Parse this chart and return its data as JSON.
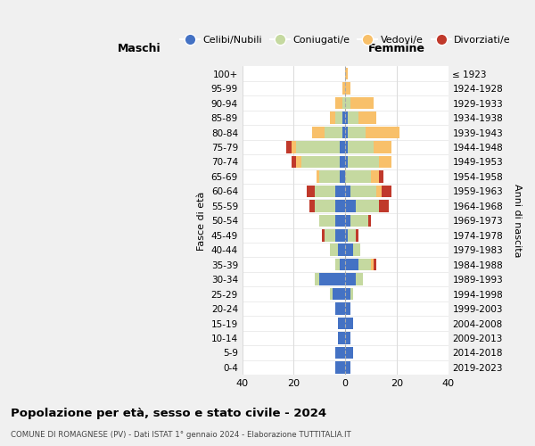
{
  "age_groups": [
    "0-4",
    "5-9",
    "10-14",
    "15-19",
    "20-24",
    "25-29",
    "30-34",
    "35-39",
    "40-44",
    "45-49",
    "50-54",
    "55-59",
    "60-64",
    "65-69",
    "70-74",
    "75-79",
    "80-84",
    "85-89",
    "90-94",
    "95-99",
    "100+"
  ],
  "birth_years": [
    "2019-2023",
    "2014-2018",
    "2009-2013",
    "2004-2008",
    "1999-2003",
    "1994-1998",
    "1989-1993",
    "1984-1988",
    "1979-1983",
    "1974-1978",
    "1969-1973",
    "1964-1968",
    "1959-1963",
    "1954-1958",
    "1949-1953",
    "1944-1948",
    "1939-1943",
    "1934-1938",
    "1929-1933",
    "1924-1928",
    "≤ 1923"
  ],
  "colors": {
    "single": "#4472C4",
    "married": "#C5D9A0",
    "widowed": "#F8C06A",
    "divorced": "#C0392B"
  },
  "maschi": {
    "single": [
      4,
      4,
      3,
      3,
      4,
      5,
      10,
      2,
      3,
      4,
      4,
      4,
      4,
      2,
      2,
      2,
      1,
      1,
      0,
      0,
      0
    ],
    "married": [
      0,
      0,
      0,
      0,
      0,
      1,
      2,
      2,
      3,
      4,
      6,
      8,
      8,
      8,
      15,
      17,
      7,
      3,
      1,
      0,
      0
    ],
    "widowed": [
      0,
      0,
      0,
      0,
      0,
      0,
      0,
      0,
      0,
      0,
      0,
      0,
      0,
      1,
      2,
      2,
      5,
      2,
      3,
      1,
      0
    ],
    "divorced": [
      0,
      0,
      0,
      0,
      0,
      0,
      0,
      0,
      0,
      1,
      0,
      2,
      3,
      0,
      2,
      2,
      0,
      0,
      0,
      0,
      0
    ]
  },
  "femmine": {
    "single": [
      2,
      3,
      2,
      3,
      2,
      2,
      4,
      5,
      3,
      1,
      2,
      4,
      2,
      0,
      1,
      1,
      1,
      1,
      0,
      0,
      0
    ],
    "married": [
      0,
      0,
      0,
      0,
      0,
      1,
      3,
      5,
      3,
      3,
      7,
      9,
      10,
      10,
      12,
      10,
      7,
      4,
      2,
      0,
      0
    ],
    "widowed": [
      0,
      0,
      0,
      0,
      0,
      0,
      0,
      1,
      0,
      0,
      0,
      0,
      2,
      3,
      5,
      7,
      13,
      7,
      9,
      2,
      1
    ],
    "divorced": [
      0,
      0,
      0,
      0,
      0,
      0,
      0,
      1,
      0,
      1,
      1,
      4,
      4,
      2,
      0,
      0,
      0,
      0,
      0,
      0,
      0
    ]
  },
  "title": "Popolazione per età, sesso e stato civile - 2024",
  "subtitle": "COMUNE DI ROMAGNESE (PV) - Dati ISTAT 1° gennaio 2024 - Elaborazione TUTTITALIA.IT",
  "xlabel_left": "Maschi",
  "xlabel_right": "Femmine",
  "ylabel_left": "Fasce di età",
  "ylabel_right": "Anni di nascita",
  "xlim": 40,
  "legend_labels": [
    "Celibi/Nubili",
    "Coniugati/e",
    "Vedovi/e",
    "Divorziati/e"
  ],
  "bg_color": "#f0f0f0",
  "plot_bg": "#ffffff"
}
